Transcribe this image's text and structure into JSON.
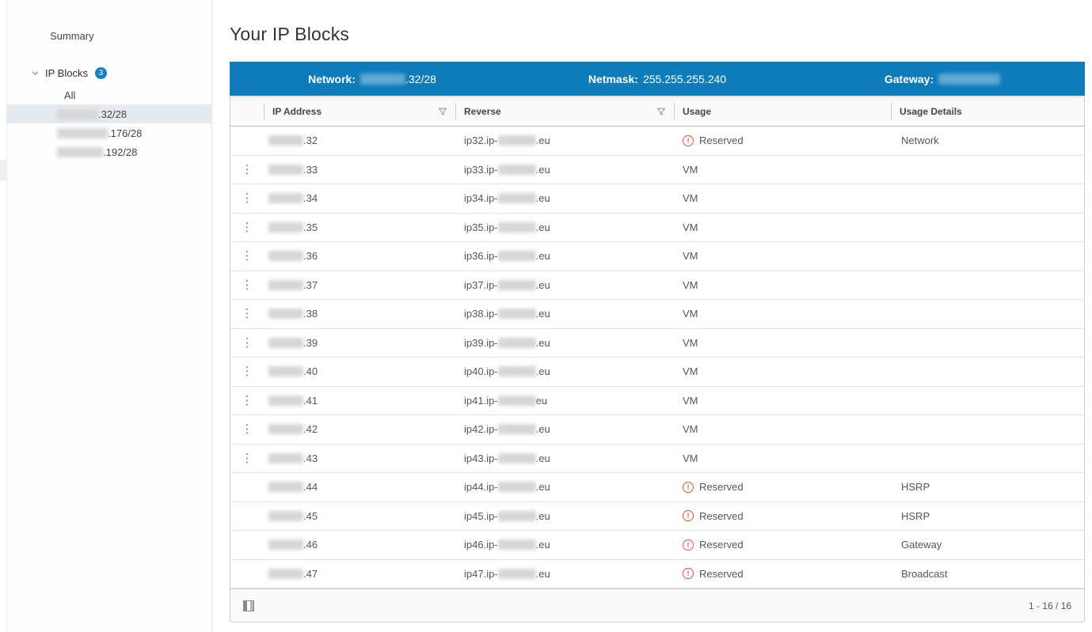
{
  "sidebar": {
    "summary_label": "Summary",
    "ip_blocks": {
      "label": "IP Blocks",
      "count": "3"
    },
    "all_label": "All",
    "blocks": [
      {
        "suffix": ".32/28",
        "selected": true,
        "blur_width": 52
      },
      {
        "suffix": ".176/28",
        "selected": false,
        "blur_width": 64
      },
      {
        "suffix": ".192/28",
        "selected": false,
        "blur_width": 58
      }
    ]
  },
  "main": {
    "title": "Your IP Blocks",
    "summary_bar": {
      "network_label": "Network:",
      "network_value_suffix": ".32/28",
      "netmask_label": "Netmask:",
      "netmask_value": "255.255.255.240",
      "gateway_label": "Gateway:"
    },
    "table": {
      "columns": {
        "ip": "IP Address",
        "reverse": "Reverse",
        "usage": "Usage",
        "details": "Usage Details"
      },
      "rows": [
        {
          "ip_suffix": ".32",
          "reverse_prefix": "ip32.ip-",
          "reverse_suffix": ".eu",
          "usage": "Reserved",
          "details": "Network",
          "kebab": false
        },
        {
          "ip_suffix": ".33",
          "reverse_prefix": "ip33.ip-",
          "reverse_suffix": ".eu",
          "usage": "VM",
          "details": "",
          "kebab": true
        },
        {
          "ip_suffix": ".34",
          "reverse_prefix": "ip34.ip-",
          "reverse_suffix": ".eu",
          "usage": "VM",
          "details": "",
          "kebab": true
        },
        {
          "ip_suffix": ".35",
          "reverse_prefix": "ip35.ip-",
          "reverse_suffix": ".eu",
          "usage": "VM",
          "details": "",
          "kebab": true
        },
        {
          "ip_suffix": ".36",
          "reverse_prefix": "ip36.ip-",
          "reverse_suffix": ".eu",
          "usage": "VM",
          "details": "",
          "kebab": true
        },
        {
          "ip_suffix": ".37",
          "reverse_prefix": "ip37.ip-",
          "reverse_suffix": ".eu",
          "usage": "VM",
          "details": "",
          "kebab": true
        },
        {
          "ip_suffix": ".38",
          "reverse_prefix": "ip38.ip-",
          "reverse_suffix": ".eu",
          "usage": "VM",
          "details": "",
          "kebab": true
        },
        {
          "ip_suffix": ".39",
          "reverse_prefix": "ip39.ip-",
          "reverse_suffix": ".eu",
          "usage": "VM",
          "details": "",
          "kebab": true
        },
        {
          "ip_suffix": ".40",
          "reverse_prefix": "ip40.ip-",
          "reverse_suffix": ".eu",
          "usage": "VM",
          "details": "",
          "kebab": true
        },
        {
          "ip_suffix": ".41",
          "reverse_prefix": "ip41.ip-",
          "reverse_suffix": "eu",
          "usage": "VM",
          "details": "",
          "kebab": true
        },
        {
          "ip_suffix": ".42",
          "reverse_prefix": "ip42.ip-",
          "reverse_suffix": ".eu",
          "usage": "VM",
          "details": "",
          "kebab": true
        },
        {
          "ip_suffix": ".43",
          "reverse_prefix": "ip43.ip-",
          "reverse_suffix": ".eu",
          "usage": "VM",
          "details": "",
          "kebab": true
        },
        {
          "ip_suffix": ".44",
          "reverse_prefix": "ip44.ip-",
          "reverse_suffix": ".eu",
          "usage": "Reserved",
          "details": "HSRP",
          "kebab": false
        },
        {
          "ip_suffix": ".45",
          "reverse_prefix": "ip45.ip-",
          "reverse_suffix": ".eu",
          "usage": "Reserved",
          "details": "HSRP",
          "kebab": false
        },
        {
          "ip_suffix": ".46",
          "reverse_prefix": "ip46.ip-",
          "reverse_suffix": ".eu",
          "usage": "Reserved",
          "details": "Gateway",
          "kebab": false
        },
        {
          "ip_suffix": ".47",
          "reverse_prefix": "ip47.ip-",
          "reverse_suffix": ".eu",
          "usage": "Reserved",
          "details": "Broadcast",
          "kebab": false
        }
      ],
      "footer": {
        "pagination": "1 - 16 / 16"
      }
    }
  },
  "colors": {
    "accent_blue": "#0e7cba",
    "badge_blue": "#0e7fc1",
    "reserved_red": "#e5533c",
    "selected_item_bg": "#e4eaee",
    "header_bg": "#fafafa"
  }
}
